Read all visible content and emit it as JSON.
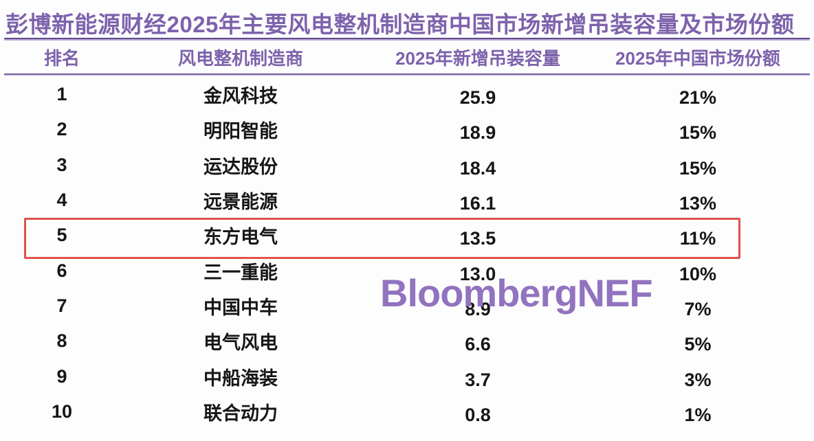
{
  "page": {
    "title": "彭博新能源财经2025年主要风电整机制造商中国市场新增吊装容量及市场份额",
    "watermark": "BloombergNEF"
  },
  "table": {
    "headers": {
      "rank": "排名",
      "manufacturer": "风电整机制造商",
      "capacity": "2025年新增吊装容量",
      "share": "2025年中国市场份额"
    },
    "rows": [
      {
        "rank": "1",
        "manufacturer": "金风科技",
        "capacity": "25.9",
        "share": "21%"
      },
      {
        "rank": "2",
        "manufacturer": "明阳智能",
        "capacity": "18.9",
        "share": "15%"
      },
      {
        "rank": "3",
        "manufacturer": "运达股份",
        "capacity": "18.4",
        "share": "15%"
      },
      {
        "rank": "4",
        "manufacturer": "远景能源",
        "capacity": "16.1",
        "share": "13%"
      },
      {
        "rank": "5",
        "manufacturer": "东方电气",
        "capacity": "13.5",
        "share": "11%"
      },
      {
        "rank": "6",
        "manufacturer": "三一重能",
        "capacity": "13.0",
        "share": "10%"
      },
      {
        "rank": "7",
        "manufacturer": "中国中车",
        "capacity": "8.9",
        "share": "7%"
      },
      {
        "rank": "8",
        "manufacturer": "电气风电",
        "capacity": "6.6",
        "share": "5%"
      },
      {
        "rank": "9",
        "manufacturer": "中船海装",
        "capacity": "3.7",
        "share": "3%"
      },
      {
        "rank": "10",
        "manufacturer": "联合动力",
        "capacity": "0.8",
        "share": "1%"
      }
    ],
    "highlighted_rank": "5"
  },
  "colors": {
    "title_purple": "#7d62ac",
    "rule_purple_dark": "#5f4b8c",
    "rule_purple_light": "#bcaad4",
    "watermark_purple": "#9173bf",
    "highlight_red": "#e0514e",
    "body_text": "#161616"
  },
  "chart_data": {
    "type": "table",
    "title": "彭博新能源财经2025年主要风电整机制造商中国市场新增吊装容量及市场份额",
    "columns": [
      "排名",
      "风电整机制造商",
      "2025年新增吊装容量",
      "2025年中国市场份额"
    ],
    "rows": [
      [
        1,
        "金风科技",
        25.9,
        "21%"
      ],
      [
        2,
        "明阳智能",
        18.9,
        "15%"
      ],
      [
        3,
        "运达股份",
        18.4,
        "15%"
      ],
      [
        4,
        "远景能源",
        16.1,
        "13%"
      ],
      [
        5,
        "东方电气",
        13.5,
        "11%"
      ],
      [
        6,
        "三一重能",
        13.0,
        "10%"
      ],
      [
        7,
        "中国中车",
        8.9,
        "7%"
      ],
      [
        8,
        "电气风电",
        6.6,
        "5%"
      ],
      [
        9,
        "中船海装",
        3.7,
        "3%"
      ],
      [
        10,
        "联合动力",
        0.8,
        "1%"
      ]
    ],
    "annotations": {
      "highlighted_row_rank": 5,
      "watermark": "BloombergNEF"
    }
  }
}
